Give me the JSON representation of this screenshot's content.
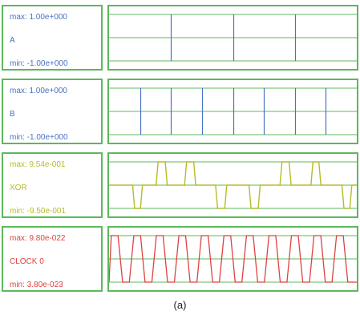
{
  "caption": "(a)",
  "colors": {
    "frame": "#5cb85c",
    "grid": "#5cb85c"
  },
  "signals": [
    {
      "id": "a",
      "name": "A",
      "max_label": "max: 1.00e+000",
      "min_label": "min: -1.00e+000",
      "color": "#4a72c4",
      "text_color": "#4a72c4",
      "trace": "steps",
      "transitions": [
        0.25,
        0.5,
        0.75
      ]
    },
    {
      "id": "b",
      "name": "B",
      "max_label": "max: 1.00e+000",
      "min_label": "min: -1.00e+000",
      "color": "#4a72c4",
      "text_color": "#4a72c4",
      "trace": "steps",
      "transitions": [
        0.125,
        0.25,
        0.375,
        0.5,
        0.625,
        0.75,
        0.875
      ]
    },
    {
      "id": "xor",
      "name": "XOR",
      "max_label": "max: 9.54e-001",
      "min_label": "min: -9.50e-001",
      "color": "#b6bb2a",
      "text_color": "#b6bb2a",
      "trace": "pulses",
      "pulses": [
        {
          "start": 0.095,
          "end": 0.135,
          "dir": "down"
        },
        {
          "start": 0.19,
          "end": 0.235,
          "dir": "up"
        },
        {
          "start": 0.305,
          "end": 0.35,
          "dir": "up"
        },
        {
          "start": 0.43,
          "end": 0.475,
          "dir": "down"
        },
        {
          "start": 0.565,
          "end": 0.61,
          "dir": "down"
        },
        {
          "start": 0.69,
          "end": 0.735,
          "dir": "up"
        },
        {
          "start": 0.815,
          "end": 0.855,
          "dir": "up"
        },
        {
          "start": 0.94,
          "end": 0.98,
          "dir": "down"
        }
      ]
    },
    {
      "id": "clock",
      "name": "CLOCK 0",
      "max_label": "max: 9.80e-022",
      "min_label": "min: 3.80e-023",
      "color": "#e04040",
      "text_color": "#e04040",
      "trace": "clock",
      "cycles": 11
    }
  ]
}
